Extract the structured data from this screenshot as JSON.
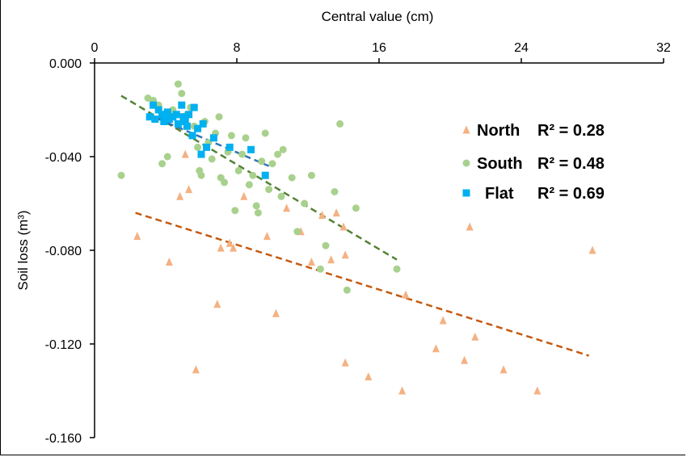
{
  "chart_data": {
    "type": "scatter",
    "xlabel": "Central value (cm)",
    "ylabel": "Soil loss (m³)",
    "xlim": [
      0,
      32
    ],
    "ylim": [
      -0.16,
      0.0
    ],
    "x_ticks": [
      0,
      8,
      16,
      24,
      32
    ],
    "x_tick_labels": [
      "0",
      "8",
      "16",
      "24",
      "32"
    ],
    "y_ticks": [
      0.0,
      -0.04,
      -0.08,
      -0.12,
      -0.16
    ],
    "y_tick_labels": [
      "0.000",
      "-0.040",
      "-0.080",
      "-0.120",
      "-0.160"
    ],
    "x_axis_position": "top",
    "grid": false,
    "legend_position": "right",
    "series": [
      {
        "name": "North",
        "r2_label": "R² = 0.28",
        "marker": "triangle",
        "color": "#F4B183",
        "trend_color": "#C55A11",
        "trend": [
          [
            2.3,
            -0.064
          ],
          [
            27.8,
            -0.125
          ]
        ],
        "points": [
          [
            2.4,
            -0.074
          ],
          [
            4.2,
            -0.085
          ],
          [
            4.8,
            -0.057
          ],
          [
            5.3,
            -0.054
          ],
          [
            5.7,
            -0.131
          ],
          [
            6.9,
            -0.103
          ],
          [
            7.1,
            -0.079
          ],
          [
            7.6,
            -0.077
          ],
          [
            7.8,
            -0.079
          ],
          [
            5.1,
            -0.039
          ],
          [
            8.4,
            -0.057
          ],
          [
            9.7,
            -0.074
          ],
          [
            10.2,
            -0.107
          ],
          [
            10.8,
            -0.062
          ],
          [
            11.6,
            -0.072
          ],
          [
            12.2,
            -0.085
          ],
          [
            12.8,
            -0.065
          ],
          [
            13.3,
            -0.084
          ],
          [
            13.6,
            -0.064
          ],
          [
            14.0,
            -0.07
          ],
          [
            14.1,
            -0.082
          ],
          [
            14.1,
            -0.128
          ],
          [
            15.4,
            -0.134
          ],
          [
            17.3,
            -0.14
          ],
          [
            17.5,
            -0.099
          ],
          [
            19.2,
            -0.122
          ],
          [
            19.6,
            -0.11
          ],
          [
            20.8,
            -0.127
          ],
          [
            21.1,
            -0.07
          ],
          [
            21.4,
            -0.117
          ],
          [
            23.0,
            -0.131
          ],
          [
            24.9,
            -0.14
          ],
          [
            28.0,
            -0.08
          ]
        ]
      },
      {
        "name": "South",
        "r2_label": "R² = 0.48",
        "marker": "circle",
        "color": "#A9D18E",
        "trend_color": "#548235",
        "trend": [
          [
            1.5,
            -0.014
          ],
          [
            17.0,
            -0.084
          ]
        ],
        "points": [
          [
            1.5,
            -0.048
          ],
          [
            3.0,
            -0.015
          ],
          [
            3.3,
            -0.016
          ],
          [
            3.6,
            -0.018
          ],
          [
            3.8,
            -0.043
          ],
          [
            4.1,
            -0.04
          ],
          [
            4.4,
            -0.02
          ],
          [
            4.7,
            -0.009
          ],
          [
            4.9,
            -0.013
          ],
          [
            5.2,
            -0.022
          ],
          [
            5.4,
            -0.019
          ],
          [
            5.6,
            -0.027
          ],
          [
            5.8,
            -0.036
          ],
          [
            5.9,
            -0.046
          ],
          [
            6.0,
            -0.048
          ],
          [
            6.2,
            -0.025
          ],
          [
            6.4,
            -0.034
          ],
          [
            6.6,
            -0.041
          ],
          [
            6.8,
            -0.03
          ],
          [
            7.0,
            -0.023
          ],
          [
            7.1,
            -0.049
          ],
          [
            7.3,
            -0.051
          ],
          [
            7.5,
            -0.038
          ],
          [
            7.7,
            -0.031
          ],
          [
            7.9,
            -0.063
          ],
          [
            8.1,
            -0.046
          ],
          [
            8.3,
            -0.039
          ],
          [
            8.5,
            -0.032
          ],
          [
            8.7,
            -0.052
          ],
          [
            8.9,
            -0.048
          ],
          [
            9.1,
            -0.061
          ],
          [
            9.2,
            -0.064
          ],
          [
            9.4,
            -0.042
          ],
          [
            9.6,
            -0.03
          ],
          [
            9.8,
            -0.054
          ],
          [
            10.0,
            -0.043
          ],
          [
            10.3,
            -0.039
          ],
          [
            10.6,
            -0.037
          ],
          [
            10.5,
            -0.057
          ],
          [
            11.1,
            -0.049
          ],
          [
            11.4,
            -0.072
          ],
          [
            11.8,
            -0.06
          ],
          [
            12.2,
            -0.048
          ],
          [
            12.7,
            -0.088
          ],
          [
            13.0,
            -0.078
          ],
          [
            13.5,
            -0.055
          ],
          [
            13.8,
            -0.026
          ],
          [
            14.2,
            -0.097
          ],
          [
            14.7,
            -0.062
          ],
          [
            17.0,
            -0.088
          ]
        ]
      },
      {
        "name": "Flat",
        "r2_label": "R² = 0.69",
        "marker": "square",
        "color": "#00B0F0",
        "trend_color": "#2E75B6",
        "trend": [
          [
            3.0,
            -0.022
          ],
          [
            9.8,
            -0.044
          ]
        ],
        "points": [
          [
            3.1,
            -0.023
          ],
          [
            3.3,
            -0.018
          ],
          [
            3.4,
            -0.024
          ],
          [
            3.6,
            -0.02
          ],
          [
            3.8,
            -0.022
          ],
          [
            3.9,
            -0.025
          ],
          [
            4.1,
            -0.021
          ],
          [
            4.2,
            -0.024
          ],
          [
            4.4,
            -0.023
          ],
          [
            4.6,
            -0.022
          ],
          [
            4.7,
            -0.026
          ],
          [
            4.9,
            -0.018
          ],
          [
            5.0,
            -0.023
          ],
          [
            5.1,
            -0.025
          ],
          [
            5.2,
            -0.027
          ],
          [
            5.3,
            -0.022
          ],
          [
            5.5,
            -0.031
          ],
          [
            5.6,
            -0.019
          ],
          [
            5.8,
            -0.028
          ],
          [
            6.0,
            -0.039
          ],
          [
            6.1,
            -0.026
          ],
          [
            6.3,
            -0.036
          ],
          [
            6.7,
            -0.032
          ],
          [
            7.6,
            -0.036
          ],
          [
            8.8,
            -0.037
          ],
          [
            9.6,
            -0.048
          ]
        ]
      }
    ]
  }
}
